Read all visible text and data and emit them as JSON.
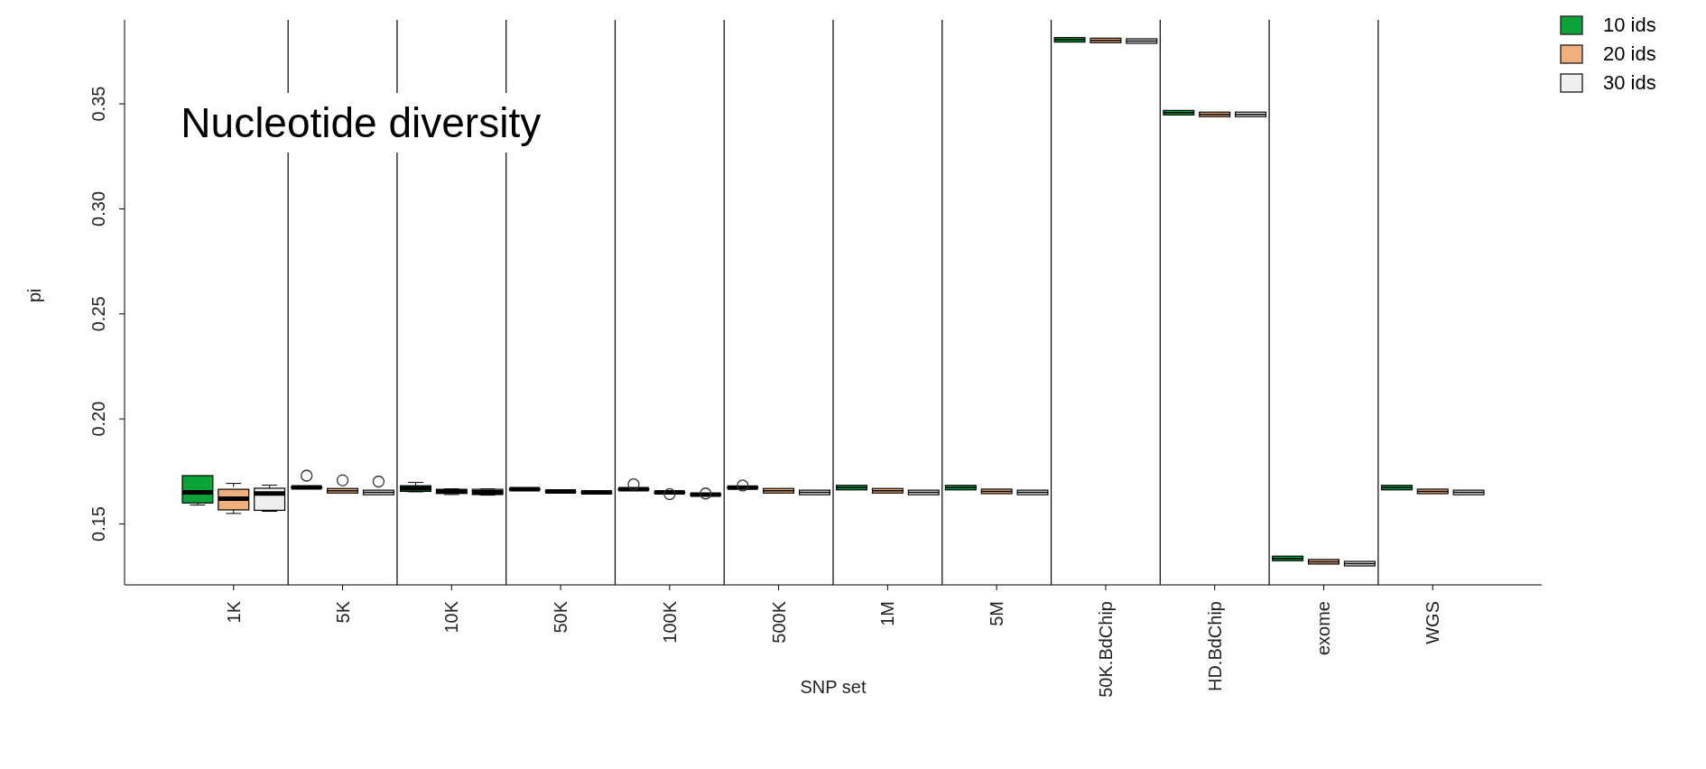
{
  "chart_data": {
    "type": "box",
    "title": "Nucleotide diversity",
    "xlabel": "SNP set",
    "ylabel": "pi",
    "categories": [
      "1K",
      "5K",
      "10K",
      "50K",
      "100K",
      "500K",
      "1M",
      "5M",
      "50K.BdChip",
      "HD.BdChip",
      "exome",
      "WGS"
    ],
    "ylim": [
      0.121,
      0.39
    ],
    "yticks": [
      0.15,
      {
        "value": 0.2,
        "label": "0.20"
      },
      0.25,
      {
        "value": 0.3,
        "label": "0.30"
      },
      0.35
    ],
    "grid": "x",
    "legend": "top right",
    "series": [
      {
        "name": "10 ids",
        "color": "#0aa33a",
        "boxes": [
          {
            "low": 0.159,
            "q1": 0.16,
            "median": 0.165,
            "q3": 0.173,
            "high": 0.173
          },
          {
            "low": 0.1672,
            "q1": 0.1672,
            "median": 0.1674,
            "q3": 0.1676,
            "high": 0.1676,
            "outliers": [
              0.173
            ]
          },
          {
            "low": 0.1653,
            "q1": 0.1655,
            "median": 0.167,
            "q3": 0.1682,
            "high": 0.1698
          },
          {
            "low": 0.1664,
            "q1": 0.1664,
            "median": 0.1665,
            "q3": 0.1666,
            "high": 0.1666
          },
          {
            "low": 0.1663,
            "q1": 0.1663,
            "median": 0.1665,
            "q3": 0.1667,
            "high": 0.1667,
            "outliers": [
              0.1689
            ]
          },
          {
            "low": 0.1672,
            "q1": 0.1672,
            "median": 0.1673,
            "q3": 0.1674,
            "high": 0.1674,
            "outliers": [
              0.1683
            ]
          },
          {
            "low": 0.1673,
            "q1": 0.1673,
            "median": 0.1673,
            "q3": 0.1673,
            "high": 0.1673
          },
          {
            "low": 0.1673,
            "q1": 0.1673,
            "median": 0.1673,
            "q3": 0.1673,
            "high": 0.1673
          },
          {
            "low": 0.3805,
            "q1": 0.3805,
            "median": 0.3805,
            "q3": 0.3805,
            "high": 0.3805
          },
          {
            "low": 0.3458,
            "q1": 0.3458,
            "median": 0.3458,
            "q3": 0.3458,
            "high": 0.3458
          },
          {
            "low": 0.1336,
            "q1": 0.1336,
            "median": 0.1336,
            "q3": 0.1336,
            "high": 0.1336
          },
          {
            "low": 0.1673,
            "q1": 0.1673,
            "median": 0.1673,
            "q3": 0.1673,
            "high": 0.1673
          }
        ]
      },
      {
        "name": "20 ids",
        "color": "#f0b07e",
        "boxes": [
          {
            "low": 0.155,
            "q1": 0.1567,
            "median": 0.162,
            "q3": 0.1665,
            "high": 0.1693
          },
          {
            "low": 0.1658,
            "q1": 0.1658,
            "median": 0.1658,
            "q3": 0.1658,
            "high": 0.1658,
            "outliers": [
              0.1708
            ]
          },
          {
            "low": 0.164,
            "q1": 0.1645,
            "median": 0.1655,
            "q3": 0.1665,
            "high": 0.1667
          },
          {
            "low": 0.1653,
            "q1": 0.1654,
            "median": 0.1655,
            "q3": 0.1656,
            "high": 0.1657
          },
          {
            "low": 0.1648,
            "q1": 0.1649,
            "median": 0.165,
            "q3": 0.1651,
            "high": 0.1652,
            "outliers": [
              0.1642
            ]
          },
          {
            "low": 0.1658,
            "q1": 0.1658,
            "median": 0.1658,
            "q3": 0.1658,
            "high": 0.1658
          },
          {
            "low": 0.1658,
            "q1": 0.1658,
            "median": 0.1658,
            "q3": 0.1658,
            "high": 0.1658
          },
          {
            "low": 0.1655,
            "q1": 0.1655,
            "median": 0.1655,
            "q3": 0.1655,
            "high": 0.1655
          },
          {
            "low": 0.3802,
            "q1": 0.3802,
            "median": 0.3802,
            "q3": 0.3802,
            "high": 0.3802
          },
          {
            "low": 0.345,
            "q1": 0.345,
            "median": 0.345,
            "q3": 0.345,
            "high": 0.345
          },
          {
            "low": 0.132,
            "q1": 0.132,
            "median": 0.132,
            "q3": 0.132,
            "high": 0.132
          },
          {
            "low": 0.1655,
            "q1": 0.1655,
            "median": 0.1655,
            "q3": 0.1655,
            "high": 0.1655
          }
        ]
      },
      {
        "name": "30 ids",
        "color": "#efefef",
        "boxes": [
          {
            "low": 0.156,
            "q1": 0.1565,
            "median": 0.1645,
            "q3": 0.167,
            "high": 0.1685
          },
          {
            "low": 0.165,
            "q1": 0.165,
            "median": 0.165,
            "q3": 0.165,
            "high": 0.165,
            "outliers": [
              0.1702
            ]
          },
          {
            "low": 0.1637,
            "q1": 0.164,
            "median": 0.165,
            "q3": 0.1665,
            "high": 0.1667
          },
          {
            "low": 0.1648,
            "q1": 0.1648,
            "median": 0.165,
            "q3": 0.1652,
            "high": 0.1652
          },
          {
            "low": 0.1638,
            "q1": 0.1639,
            "median": 0.164,
            "q3": 0.1641,
            "high": 0.1642,
            "outliers": [
              0.1645
            ]
          },
          {
            "low": 0.165,
            "q1": 0.165,
            "median": 0.165,
            "q3": 0.165,
            "high": 0.165
          },
          {
            "low": 0.165,
            "q1": 0.165,
            "median": 0.165,
            "q3": 0.165,
            "high": 0.165
          },
          {
            "low": 0.165,
            "q1": 0.165,
            "median": 0.165,
            "q3": 0.165,
            "high": 0.165
          },
          {
            "low": 0.3799,
            "q1": 0.3799,
            "median": 0.3799,
            "q3": 0.3799,
            "high": 0.3799
          },
          {
            "low": 0.345,
            "q1": 0.345,
            "median": 0.345,
            "q3": 0.345,
            "high": 0.345
          },
          {
            "low": 0.1311,
            "q1": 0.1311,
            "median": 0.1311,
            "q3": 0.1311,
            "high": 0.1311
          },
          {
            "low": 0.165,
            "q1": 0.165,
            "median": 0.165,
            "q3": 0.165,
            "high": 0.165
          }
        ]
      }
    ]
  }
}
